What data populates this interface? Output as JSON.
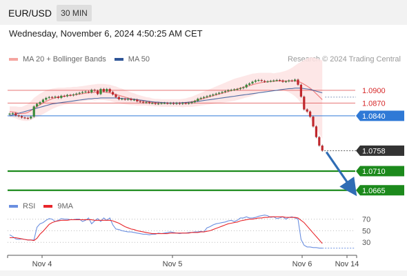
{
  "header": {
    "symbol": "EUR/USD",
    "timeframe": "30 MIN",
    "datetime": "Wednesday, November 6, 2024 4:50:25 AM CET",
    "copyright": "Research © 2024 Trading Central"
  },
  "colors": {
    "ma20": "#f08080",
    "ma50": "#2f5597",
    "bollinger_fill": "#fde3e3",
    "candle_up": "#3a8a3a",
    "candle_down": "#c0282d",
    "blue_level": "#2f79d6",
    "green_level": "#1c8a1c",
    "red_level": "#e05050",
    "rsi": "#6a8fe0",
    "rsi_ma": "#e8262b",
    "arrow": "#2f6db5"
  },
  "chart_data": [
    {
      "type": "candlestick",
      "title": "EUR/USD",
      "legend": [
        {
          "name": "MA 20 + Bollinger Bands",
          "color": "#f08080"
        },
        {
          "name": "MA 50",
          "color": "#2f5597"
        }
      ],
      "x_ticks": [
        "Nov 4",
        "Nov 5",
        "Nov 6",
        "Nov 14"
      ],
      "ylim": [
        1.065,
        1.095
      ],
      "last_price": {
        "value": 1.0758,
        "label": "1.0758"
      },
      "levels": [
        {
          "value": 1.09,
          "label": "1.0900",
          "kind": "resistance",
          "color": "#e05050"
        },
        {
          "value": 1.087,
          "label": "1.0870",
          "kind": "resistance",
          "color": "#e05050"
        },
        {
          "value": 1.084,
          "label": "1.0840",
          "kind": "pivot",
          "color": "#2f79d6"
        },
        {
          "value": 1.071,
          "label": "1.0710",
          "kind": "support",
          "color": "#1c8a1c"
        },
        {
          "value": 1.0665,
          "label": "1.0665",
          "kind": "support",
          "color": "#1c8a1c"
        }
      ],
      "close_series": [
        1.0845,
        1.0846,
        1.0841,
        1.0839,
        1.0836,
        1.0835,
        1.0834,
        1.0838,
        1.0862,
        1.0868,
        1.0872,
        1.0878,
        1.0882,
        1.0884,
        1.0883,
        1.0885,
        1.0882,
        1.0887,
        1.0886,
        1.0889,
        1.0888,
        1.089,
        1.0892,
        1.0894,
        1.0896,
        1.0897,
        1.0895,
        1.0901,
        1.0899,
        1.0891,
        1.0903,
        1.0897,
        1.0903,
        1.0896,
        1.089,
        1.0884,
        1.0879,
        1.088,
        1.0878,
        1.088,
        1.0877,
        1.0878,
        1.0874,
        1.0873,
        1.0871,
        1.0872,
        1.087,
        1.087,
        1.0868,
        1.0869,
        1.087,
        1.087,
        1.0869,
        1.087,
        1.0868,
        1.087,
        1.0868,
        1.087,
        1.0869,
        1.087,
        1.0872,
        1.0875,
        1.088,
        1.0882,
        1.0884,
        1.0886,
        1.0888,
        1.089,
        1.0892,
        1.0894,
        1.0896,
        1.0898,
        1.09,
        1.0901,
        1.0902,
        1.0903,
        1.0905,
        1.0907,
        1.0913,
        1.0916,
        1.092,
        1.0923,
        1.0924,
        1.0922,
        1.092,
        1.0921,
        1.0922,
        1.0923,
        1.0924,
        1.0923,
        1.092,
        1.0921,
        1.0923,
        1.0922,
        1.0925,
        1.0913,
        1.0885,
        1.0855,
        1.085,
        1.0838,
        1.0815,
        1.079,
        1.077,
        1.0758
      ],
      "ma20_series": [
        1.085,
        1.0849,
        1.0848,
        1.0846,
        1.0845,
        1.0846,
        1.0848,
        1.0852,
        1.0858,
        1.0862,
        1.0866,
        1.087,
        1.0874,
        1.0877,
        1.088,
        1.0882,
        1.0884,
        1.0885,
        1.0886,
        1.0887,
        1.0888,
        1.0889,
        1.089,
        1.0891,
        1.0892,
        1.0893,
        1.0894,
        1.0895,
        1.0895,
        1.0896,
        1.0896,
        1.0896,
        1.0895,
        1.0894,
        1.0892,
        1.089,
        1.0888,
        1.0886,
        1.0884,
        1.0882,
        1.088,
        1.0879,
        1.0877,
        1.0876,
        1.0875,
        1.0874,
        1.0873,
        1.0872,
        1.0871,
        1.0871,
        1.087,
        1.087,
        1.087,
        1.087,
        1.087,
        1.087,
        1.087,
        1.087,
        1.0871,
        1.0872,
        1.0873,
        1.0875,
        1.0877,
        1.0879,
        1.0881,
        1.0883,
        1.0885,
        1.0887,
        1.0889,
        1.0891,
        1.0893,
        1.0895,
        1.0897,
        1.0899,
        1.0901,
        1.0903,
        1.0905,
        1.0907,
        1.0909,
        1.0911,
        1.0913,
        1.0915,
        1.0917,
        1.0918,
        1.0919,
        1.092,
        1.0921,
        1.0921,
        1.0922,
        1.0922,
        1.0922,
        1.0922,
        1.0922,
        1.0922,
        1.0922,
        1.0921,
        1.0918,
        1.0914,
        1.091,
        1.0905,
        1.0899,
        1.0892,
        1.0885,
        1.0878
      ],
      "ma50_series": [
        1.084,
        1.0842,
        1.0844,
        1.0846,
        1.0848,
        1.085,
        1.0852,
        1.0854,
        1.0856,
        1.0858,
        1.086,
        1.0862,
        1.0864,
        1.0866,
        1.0868,
        1.0869,
        1.087,
        1.0871,
        1.0872,
        1.0873,
        1.0874,
        1.0875,
        1.0876,
        1.0877,
        1.0878,
        1.0879,
        1.088,
        1.088,
        1.0881,
        1.0881,
        1.0882,
        1.0882,
        1.0882,
        1.0882,
        1.0882,
        1.0882,
        1.0881,
        1.0881,
        1.088,
        1.088,
        1.0879,
        1.0879,
        1.0878,
        1.0877,
        1.0876,
        1.0875,
        1.0874,
        1.0873,
        1.0872,
        1.0872,
        1.0871,
        1.0871,
        1.087,
        1.087,
        1.087,
        1.087,
        1.087,
        1.0871,
        1.0871,
        1.0872,
        1.0872,
        1.0873,
        1.0874,
        1.0875,
        1.0876,
        1.0877,
        1.0878,
        1.0879,
        1.088,
        1.0881,
        1.0882,
        1.0883,
        1.0884,
        1.0885,
        1.0886,
        1.0887,
        1.0888,
        1.0889,
        1.089,
        1.0891,
        1.0892,
        1.0893,
        1.0894,
        1.0895,
        1.0896,
        1.0897,
        1.0898,
        1.0899,
        1.09,
        1.0901,
        1.0902,
        1.0903,
        1.0904,
        1.0904,
        1.0905,
        1.0905,
        1.0905,
        1.0904,
        1.0903,
        1.0902,
        1.09,
        1.0898,
        1.0896,
        1.0894
      ],
      "bollinger_width_series": [
        0.0012,
        0.0013,
        0.0014,
        0.0015,
        0.0016,
        0.0018,
        0.002,
        0.0022,
        0.0024,
        0.0025,
        0.0026,
        0.0026,
        0.0026,
        0.0025,
        0.0024,
        0.0023,
        0.0022,
        0.0021,
        0.002,
        0.002,
        0.0019,
        0.0019,
        0.0018,
        0.0018,
        0.0018,
        0.0018,
        0.0018,
        0.0018,
        0.0019,
        0.0019,
        0.0019,
        0.0019,
        0.0019,
        0.0019,
        0.0019,
        0.0019,
        0.0018,
        0.0018,
        0.0017,
        0.0016,
        0.0015,
        0.0014,
        0.0013,
        0.0012,
        0.0011,
        0.001,
        0.001,
        0.0009,
        0.0009,
        0.0009,
        0.0009,
        0.0009,
        0.0009,
        0.0009,
        0.0009,
        0.0009,
        0.0009,
        0.001,
        0.001,
        0.0011,
        0.0012,
        0.0013,
        0.0014,
        0.0015,
        0.0016,
        0.0017,
        0.0018,
        0.0019,
        0.002,
        0.0021,
        0.0022,
        0.0023,
        0.0024,
        0.0025,
        0.0026,
        0.0026,
        0.0026,
        0.0026,
        0.0026,
        0.0026,
        0.0026,
        0.0025,
        0.0024,
        0.0023,
        0.0022,
        0.0021,
        0.002,
        0.0019,
        0.0019,
        0.002,
        0.0022,
        0.0024,
        0.0027,
        0.0031,
        0.0036,
        0.0042,
        0.0049,
        0.0057,
        0.0065,
        0.0072,
        0.0078,
        0.0083,
        0.0088,
        0.0092
      ]
    },
    {
      "type": "line",
      "title": "RSI",
      "legend": [
        {
          "name": "RSI",
          "color": "#6a8fe0"
        },
        {
          "name": "9MA",
          "color": "#e8262b"
        }
      ],
      "y_ticks": [
        70,
        50,
        30
      ],
      "ylim": [
        10,
        85
      ],
      "series": [
        {
          "name": "RSI",
          "values": [
            43,
            40,
            36,
            35,
            36,
            35,
            34,
            34,
            34,
            56,
            62,
            64,
            68,
            71,
            70,
            66,
            68,
            71,
            70,
            70,
            69,
            69,
            70,
            70,
            66,
            68,
            72,
            62,
            67,
            71,
            66,
            72,
            68,
            72,
            60,
            53,
            52,
            50,
            49,
            48,
            48,
            47,
            46,
            45,
            44,
            44,
            43,
            44,
            44,
            46,
            45,
            46,
            47,
            48,
            47,
            46,
            45,
            46,
            46,
            47,
            47,
            48,
            48,
            49,
            48,
            55,
            57,
            60,
            62,
            63,
            64,
            65,
            67,
            68,
            66,
            68,
            72,
            72,
            74,
            72,
            72,
            73,
            75,
            76,
            77,
            76,
            73,
            74,
            71,
            72,
            74,
            70,
            73,
            74,
            72,
            70,
            35,
            25,
            22,
            22,
            21,
            21,
            20,
            20
          ]
        },
        {
          "name": "9MA",
          "values": [
            38,
            38,
            38,
            37,
            36,
            35,
            34,
            34,
            33,
            37,
            44,
            49,
            55,
            61,
            64,
            66,
            67,
            68,
            68,
            68,
            69,
            69,
            69,
            69,
            69,
            69,
            69,
            69,
            68,
            68,
            68,
            68,
            68,
            68,
            67,
            65,
            63,
            60,
            57,
            55,
            53,
            52,
            50,
            49,
            48,
            47,
            46,
            45,
            45,
            45,
            45,
            45,
            45,
            46,
            46,
            46,
            46,
            46,
            46,
            46,
            47,
            47,
            47,
            48,
            48,
            49,
            50,
            52,
            54,
            56,
            58,
            60,
            62,
            63,
            64,
            65,
            67,
            68,
            69,
            70,
            70,
            71,
            72,
            72,
            73,
            73,
            74,
            74,
            74,
            74,
            74,
            73,
            73,
            73,
            73,
            72,
            68,
            64,
            58,
            52,
            46,
            40,
            34,
            28
          ]
        }
      ]
    }
  ]
}
